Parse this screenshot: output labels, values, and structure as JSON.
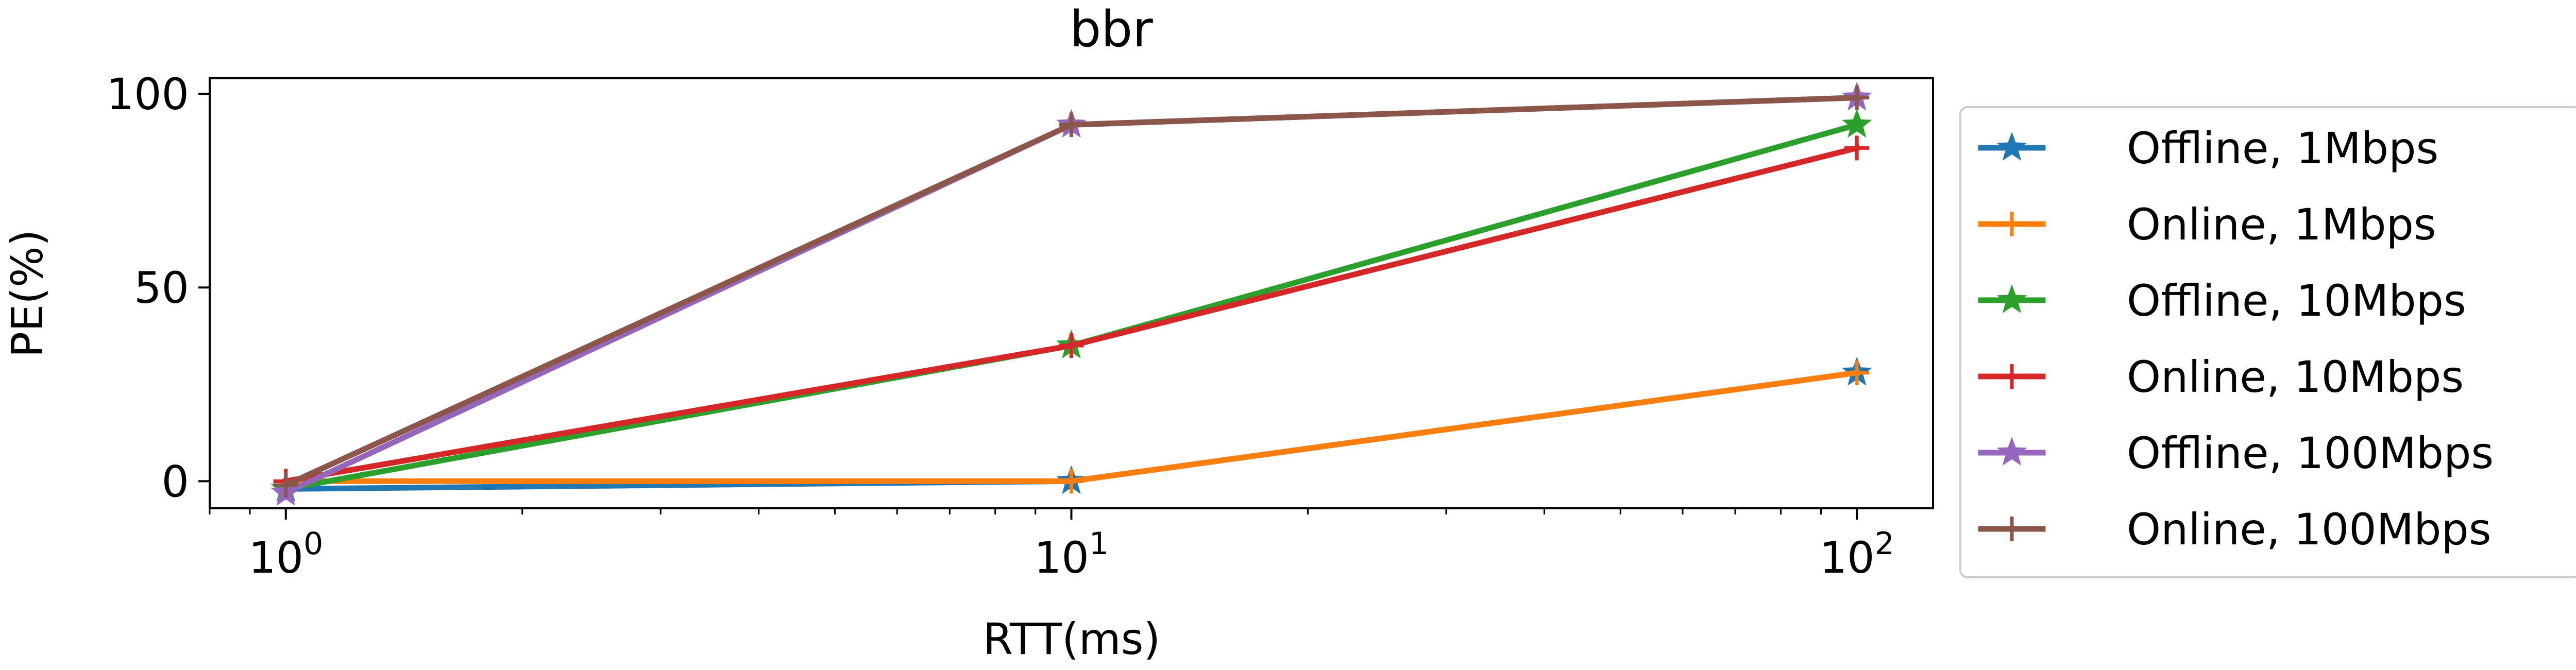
{
  "chart_data": {
    "type": "line",
    "title": "bbr",
    "xlabel": "RTT(ms)",
    "ylabel": "PE(%)",
    "x_scale": "log",
    "xlim": [
      0.8,
      125
    ],
    "ylim": [
      -7,
      104
    ],
    "x_ticks": [
      {
        "value": 1,
        "base": "10",
        "exp": "0"
      },
      {
        "value": 10,
        "base": "10",
        "exp": "1"
      },
      {
        "value": 100,
        "base": "10",
        "exp": "2"
      }
    ],
    "y_ticks": [
      {
        "value": 0,
        "label": "0"
      },
      {
        "value": 50,
        "label": "50"
      },
      {
        "value": 100,
        "label": "100"
      }
    ],
    "grid": false,
    "legend_position": "outside-right",
    "x": [
      1,
      10,
      100
    ],
    "series": [
      {
        "name": "Offline, 1Mbps",
        "marker": "star",
        "color": "#1f77b4",
        "values": [
          -2,
          0,
          28
        ]
      },
      {
        "name": "Online, 1Mbps",
        "marker": "plus",
        "color": "#ff7f0e",
        "values": [
          0,
          0,
          28
        ]
      },
      {
        "name": "Offline, 10Mbps",
        "marker": "star",
        "color": "#2ca02c",
        "values": [
          -2,
          35,
          92
        ]
      },
      {
        "name": "Online, 10Mbps",
        "marker": "plus",
        "color": "#d62728",
        "values": [
          0,
          35,
          86
        ]
      },
      {
        "name": "Offline, 100Mbps",
        "marker": "star",
        "color": "#9467bd",
        "values": [
          -3,
          92,
          99
        ]
      },
      {
        "name": "Online, 100Mbps",
        "marker": "plus",
        "color": "#8c564b",
        "values": [
          -1,
          92,
          99
        ]
      }
    ]
  }
}
